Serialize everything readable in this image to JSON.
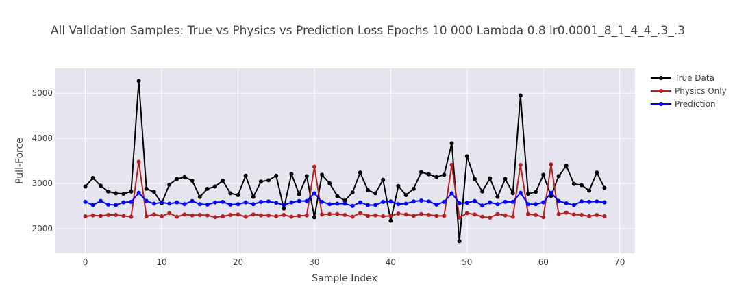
{
  "chart_data": {
    "type": "line",
    "title": "All Validation Samples: True vs Physics vs Prediction Loss Epochs 10 000 Lambda 0.8 lr0.0001_8_1_4_4_.3_.3",
    "xlabel": "Sample Index",
    "ylabel": "Pull-Force",
    "xlim": [
      -4,
      72
    ],
    "ylim": [
      1450,
      5550
    ],
    "x_ticks": [
      0,
      10,
      20,
      30,
      40,
      50,
      60,
      70
    ],
    "y_ticks": [
      2000,
      3000,
      4000,
      5000
    ],
    "grid": true,
    "legend_position": "top-right",
    "x": [
      0,
      1,
      2,
      3,
      4,
      5,
      6,
      7,
      8,
      9,
      10,
      11,
      12,
      13,
      14,
      15,
      16,
      17,
      18,
      19,
      20,
      21,
      22,
      23,
      24,
      25,
      26,
      27,
      28,
      29,
      30,
      31,
      32,
      33,
      34,
      35,
      36,
      37,
      38,
      39,
      40,
      41,
      42,
      43,
      44,
      45,
      46,
      47,
      48,
      49,
      50,
      51,
      52,
      53,
      54,
      55,
      56,
      57,
      58,
      59,
      60,
      61,
      62,
      63,
      64,
      65,
      66,
      67,
      68
    ],
    "series": [
      {
        "name": "True Data",
        "color": "#000000",
        "values": [
          2930,
          3120,
          2950,
          2820,
          2780,
          2770,
          2820,
          5270,
          2880,
          2810,
          2560,
          2970,
          3100,
          3140,
          3060,
          2700,
          2880,
          2930,
          3060,
          2780,
          2740,
          3170,
          2700,
          3040,
          3070,
          3170,
          2440,
          3210,
          2760,
          3160,
          2250,
          3190,
          3000,
          2720,
          2620,
          2800,
          3240,
          2850,
          2780,
          3080,
          2170,
          2940,
          2740,
          2880,
          3250,
          3200,
          3140,
          3190,
          3890,
          1720,
          3600,
          3100,
          2820,
          3110,
          2700,
          3100,
          2780,
          4950,
          2770,
          2810,
          3190,
          2720,
          3160,
          3390,
          2990,
          2960,
          2840,
          3240,
          2900
        ]
      },
      {
        "name": "Physics Only",
        "color": "#b22222",
        "values": [
          2270,
          2290,
          2280,
          2300,
          2300,
          2280,
          2260,
          3480,
          2270,
          2310,
          2270,
          2340,
          2260,
          2310,
          2290,
          2300,
          2290,
          2250,
          2270,
          2300,
          2310,
          2260,
          2310,
          2290,
          2290,
          2270,
          2300,
          2260,
          2280,
          2290,
          3370,
          2310,
          2320,
          2320,
          2300,
          2260,
          2340,
          2280,
          2290,
          2270,
          2280,
          2330,
          2310,
          2280,
          2320,
          2300,
          2280,
          2280,
          3410,
          2240,
          2340,
          2310,
          2260,
          2240,
          2320,
          2290,
          2260,
          3410,
          2320,
          2300,
          2250,
          3420,
          2320,
          2350,
          2310,
          2300,
          2270,
          2300,
          2270
        ]
      },
      {
        "name": "Prediction",
        "color": "#0000ff",
        "values": [
          2590,
          2520,
          2610,
          2530,
          2520,
          2580,
          2590,
          2790,
          2610,
          2550,
          2580,
          2550,
          2580,
          2540,
          2610,
          2540,
          2530,
          2580,
          2590,
          2530,
          2540,
          2580,
          2540,
          2590,
          2600,
          2570,
          2520,
          2580,
          2610,
          2610,
          2780,
          2590,
          2540,
          2550,
          2550,
          2500,
          2580,
          2520,
          2520,
          2590,
          2600,
          2540,
          2550,
          2600,
          2620,
          2600,
          2530,
          2590,
          2780,
          2560,
          2570,
          2610,
          2510,
          2580,
          2540,
          2590,
          2590,
          2790,
          2540,
          2540,
          2580,
          2790,
          2610,
          2560,
          2520,
          2600,
          2590,
          2600,
          2580
        ]
      }
    ]
  }
}
